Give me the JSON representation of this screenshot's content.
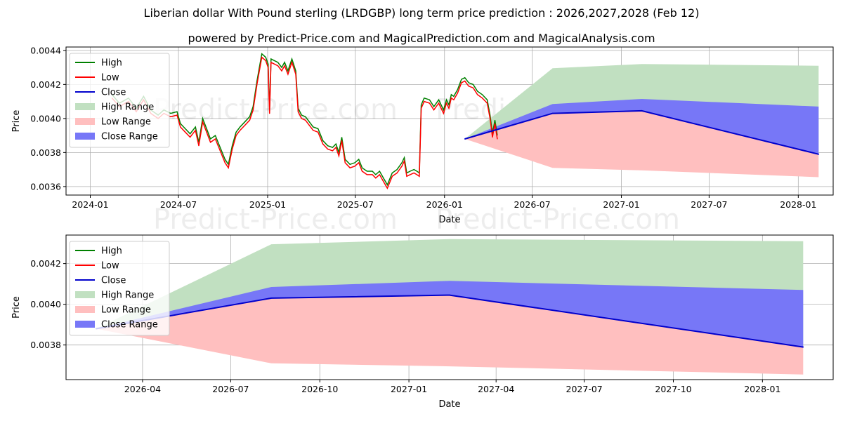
{
  "chart_data": {
    "type": "line",
    "title": "Liberian dollar With Pound sterling (LRDGBP) long term price prediction : 2026,2027,2028 (Feb 12)",
    "subtitle": "powered by Predict-Price.com and MagicalPrediction.com and MagicalAnalysis.com",
    "watermark": "Predict-Price.com",
    "colors": {
      "high": "#008000",
      "low": "#ff0000",
      "close": "#0000cc",
      "high_range": "#c1e0c1",
      "low_range": "#ffbfbf",
      "close_range": "#7777f7"
    },
    "legend": {
      "position": "top-left",
      "entries": [
        "High",
        "Low",
        "Close",
        "High Range",
        "Low Range",
        "Close Range"
      ]
    },
    "panels": [
      {
        "name": "full-history",
        "xlabel": "Date",
        "ylabel": "Price",
        "xlim": [
          "2023-11-12",
          "2028-03-13"
        ],
        "ylim": [
          0.00355,
          0.00442
        ],
        "xticks": [
          {
            "date": "2024-01-01",
            "label": "2024-01"
          },
          {
            "date": "2024-07-01",
            "label": "2024-07"
          },
          {
            "date": "2025-01-01",
            "label": "2025-01"
          },
          {
            "date": "2025-07-01",
            "label": "2025-07"
          },
          {
            "date": "2026-01-01",
            "label": "2026-01"
          },
          {
            "date": "2026-07-01",
            "label": "2026-07"
          },
          {
            "date": "2027-01-01",
            "label": "2027-01"
          },
          {
            "date": "2027-07-01",
            "label": "2027-07"
          },
          {
            "date": "2028-01-01",
            "label": "2028-01"
          }
        ],
        "yticks": [
          {
            "value": 0.0036,
            "label": "0.0036"
          },
          {
            "value": 0.0038,
            "label": "0.0038"
          },
          {
            "value": 0.004,
            "label": "0.0040"
          },
          {
            "value": 0.0042,
            "label": "0.0042"
          },
          {
            "value": 0.0044,
            "label": "0.0044"
          }
        ]
      },
      {
        "name": "forecast-zoom",
        "xlabel": "Date",
        "ylabel": "Price",
        "xlim": [
          "2026-01-12",
          "2028-03-14"
        ],
        "ylim": [
          0.00363,
          0.00434
        ],
        "xticks": [
          {
            "date": "2026-04-01",
            "label": "2026-04"
          },
          {
            "date": "2026-07-01",
            "label": "2026-07"
          },
          {
            "date": "2026-10-01",
            "label": "2026-10"
          },
          {
            "date": "2027-01-01",
            "label": "2027-01"
          },
          {
            "date": "2027-04-01",
            "label": "2027-04"
          },
          {
            "date": "2027-07-01",
            "label": "2027-07"
          },
          {
            "date": "2027-10-01",
            "label": "2027-10"
          },
          {
            "date": "2028-01-01",
            "label": "2028-01"
          }
        ],
        "yticks": [
          {
            "value": 0.0038,
            "label": "0.0038"
          },
          {
            "value": 0.004,
            "label": "0.0040"
          },
          {
            "value": 0.0042,
            "label": "0.0042"
          }
        ]
      }
    ],
    "history": [
      [
        "2024-02-15",
        0.00412
      ],
      [
        "2024-03-01",
        0.00407
      ],
      [
        "2024-03-20",
        0.0041
      ],
      [
        "2024-04-05",
        0.00404
      ],
      [
        "2024-04-20",
        0.00411
      ],
      [
        "2024-05-05",
        0.00403
      ],
      [
        "2024-05-20",
        0.004
      ],
      [
        "2024-06-01",
        0.00403
      ],
      [
        "2024-06-15",
        0.00401
      ],
      [
        "2024-06-28",
        0.00402
      ],
      [
        "2024-07-05",
        0.00395
      ],
      [
        "2024-07-15",
        0.00392
      ],
      [
        "2024-07-25",
        0.00389
      ],
      [
        "2024-08-05",
        0.00393
      ],
      [
        "2024-08-12",
        0.00384
      ],
      [
        "2024-08-20",
        0.00398
      ],
      [
        "2024-08-28",
        0.00392
      ],
      [
        "2024-09-05",
        0.00386
      ],
      [
        "2024-09-15",
        0.00388
      ],
      [
        "2024-09-25",
        0.00381
      ],
      [
        "2024-10-05",
        0.00374
      ],
      [
        "2024-10-12",
        0.00371
      ],
      [
        "2024-10-20",
        0.00382
      ],
      [
        "2024-10-28",
        0.0039
      ],
      [
        "2024-11-05",
        0.00393
      ],
      [
        "2024-11-15",
        0.00396
      ],
      [
        "2024-11-25",
        0.00399
      ],
      [
        "2024-12-02",
        0.00405
      ],
      [
        "2024-12-10",
        0.0042
      ],
      [
        "2024-12-15",
        0.00428
      ],
      [
        "2024-12-20",
        0.00436
      ],
      [
        "2024-12-28",
        0.00434
      ],
      [
        "2025-01-02",
        0.0043
      ],
      [
        "2025-01-05",
        0.00403
      ],
      [
        "2025-01-08",
        0.00433
      ],
      [
        "2025-01-15",
        0.00432
      ],
      [
        "2025-01-22",
        0.00431
      ],
      [
        "2025-01-30",
        0.00428
      ],
      [
        "2025-02-05",
        0.00431
      ],
      [
        "2025-02-12",
        0.00426
      ],
      [
        "2025-02-20",
        0.00433
      ],
      [
        "2025-02-28",
        0.00426
      ],
      [
        "2025-03-05",
        0.00404
      ],
      [
        "2025-03-12",
        0.004
      ],
      [
        "2025-03-20",
        0.00399
      ],
      [
        "2025-03-28",
        0.00396
      ],
      [
        "2025-04-05",
        0.00393
      ],
      [
        "2025-04-15",
        0.00392
      ],
      [
        "2025-04-25",
        0.00385
      ],
      [
        "2025-05-05",
        0.00382
      ],
      [
        "2025-05-15",
        0.00381
      ],
      [
        "2025-05-22",
        0.00383
      ],
      [
        "2025-05-28",
        0.00378
      ],
      [
        "2025-06-03",
        0.00387
      ],
      [
        "2025-06-10",
        0.00374
      ],
      [
        "2025-06-20",
        0.00371
      ],
      [
        "2025-06-30",
        0.00372
      ],
      [
        "2025-07-08",
        0.00374
      ],
      [
        "2025-07-15",
        0.00369
      ],
      [
        "2025-07-25",
        0.00367
      ],
      [
        "2025-08-05",
        0.00367
      ],
      [
        "2025-08-12",
        0.00365
      ],
      [
        "2025-08-20",
        0.00367
      ],
      [
        "2025-08-28",
        0.00363
      ],
      [
        "2025-09-05",
        0.00359
      ],
      [
        "2025-09-15",
        0.00366
      ],
      [
        "2025-09-25",
        0.00368
      ],
      [
        "2025-10-05",
        0.00372
      ],
      [
        "2025-10-10",
        0.00375
      ],
      [
        "2025-10-15",
        0.00366
      ],
      [
        "2025-10-22",
        0.00367
      ],
      [
        "2025-10-30",
        0.00368
      ],
      [
        "2025-11-05",
        0.00367
      ],
      [
        "2025-11-10",
        0.00366
      ],
      [
        "2025-11-14",
        0.00406
      ],
      [
        "2025-11-20",
        0.0041
      ],
      [
        "2025-12-01",
        0.00409
      ],
      [
        "2025-12-10",
        0.00405
      ],
      [
        "2025-12-20",
        0.00409
      ],
      [
        "2025-12-30",
        0.00403
      ],
      [
        "2026-01-05",
        0.00409
      ],
      [
        "2026-01-10",
        0.00406
      ],
      [
        "2026-01-15",
        0.00412
      ],
      [
        "2026-01-20",
        0.00411
      ],
      [
        "2026-01-28",
        0.00415
      ],
      [
        "2026-02-05",
        0.00421
      ],
      [
        "2026-02-12",
        0.00422
      ],
      [
        "2026-02-20",
        0.00419
      ],
      [
        "2026-03-01",
        0.00418
      ],
      [
        "2026-03-10",
        0.00414
      ],
      [
        "2026-03-20",
        0.00412
      ],
      [
        "2026-03-30",
        0.00409
      ],
      [
        "2026-04-05",
        0.004
      ],
      [
        "2026-04-10",
        0.00389
      ],
      [
        "2026-04-15",
        0.00397
      ],
      [
        "2026-04-20",
        0.00388
      ]
    ],
    "forecast": {
      "dates": [
        "2026-02-12",
        "2026-08-12",
        "2027-02-12",
        "2028-02-12"
      ],
      "close": [
        0.00388,
        0.00403,
        0.004045,
        0.00379
      ],
      "close_upper": [
        0.00388,
        0.004085,
        0.004115,
        0.00407
      ],
      "high_upper": [
        0.00388,
        0.004295,
        0.00432,
        0.00431
      ],
      "low_lower": [
        0.00388,
        0.00371,
        0.003695,
        0.003655
      ]
    }
  }
}
